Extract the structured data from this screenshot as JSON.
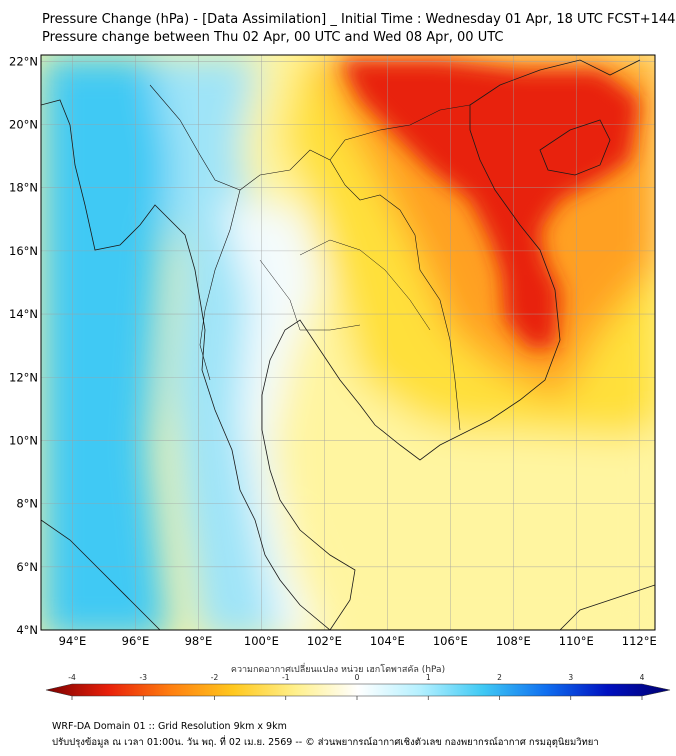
{
  "header": {
    "title_line1": "Pressure Change (hPa) - [Data Assimilation] _ Initial Time : Wednesday 01 Apr, 18 UTC FCST+144",
    "title_line2": "Pressure change between Thu 02 Apr, 00 UTC and Wed 08 Apr, 00 UTC"
  },
  "map": {
    "region": "Mainland Southeast Asia",
    "lon_range": [
      93,
      112.5
    ],
    "lat_range": [
      4,
      22.2
    ],
    "lon_ticks": [
      "94°E",
      "96°E",
      "98°E",
      "100°E",
      "102°E",
      "104°E",
      "106°E",
      "108°E",
      "110°E",
      "112°E"
    ],
    "lat_ticks": [
      "4°N",
      "6°N",
      "8°N",
      "10°N",
      "12°N",
      "14°N",
      "16°N",
      "18°N",
      "20°N",
      "22°N"
    ],
    "field_colors": {
      "cyan": "#3fc9f4",
      "light_cyan": "#9fe4f8",
      "white": "#f4fbfd",
      "light_yellow": "#fff5a0",
      "yellow": "#ffe03a",
      "orange": "#ffa020",
      "red": "#e8200a"
    }
  },
  "colorbar": {
    "title": "ความกดอากาศเปลี่ยนแปลง หน่วย เฮกโตพาสคัล (hPa)",
    "ticks": [
      "-4",
      "-3",
      "-2",
      "-1",
      "0",
      "1",
      "2",
      "3",
      "4"
    ],
    "color_stops": [
      "#7a0000",
      "#e8200a",
      "#ff7f10",
      "#ffc81e",
      "#fff08c",
      "#ffffff",
      "#b4f0ff",
      "#3fc9f4",
      "#1070f0",
      "#0010c0",
      "#000070"
    ]
  },
  "footer": {
    "line1": "WRF-DA Domain 01 :: Grid Resolution 9km x 9km",
    "line2": "ปรับปรุงข้อมูล ณ เวลา 01:00น. วัน พฤ. ที่ 02 เม.ย. 2569 -- © ส่วนพยากรณ์อากาศเชิงตัวเลข กองพยากรณ์อากาศ กรมอุตุนิยมวิทยา"
  }
}
